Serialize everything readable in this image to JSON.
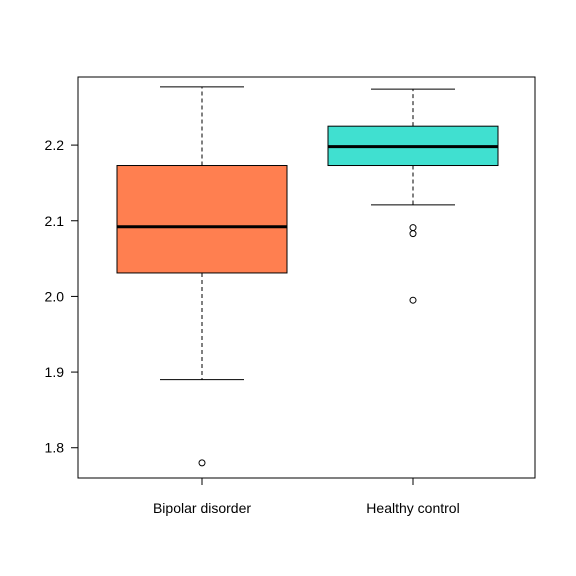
{
  "chart_data": {
    "type": "box",
    "title": "",
    "xlabel": "",
    "ylabel": "",
    "ylim": [
      1.76,
      2.29
    ],
    "yticks": [
      "1.8",
      "1.9",
      "2.0",
      "2.1",
      "2.2"
    ],
    "grid": false,
    "legend": "none",
    "categories": [
      "Bipolar disorder",
      "Healthy control"
    ],
    "boxes": [
      {
        "category": "Bipolar disorder",
        "color": "#FF7F50",
        "whisker_low": 1.89,
        "q1": 2.031,
        "median": 2.092,
        "q3": 2.173,
        "whisker_high": 2.277,
        "outliers": [
          1.78
        ]
      },
      {
        "category": "Healthy control",
        "color": "#40E0D0",
        "whisker_low": 2.121,
        "q1": 2.173,
        "median": 2.198,
        "q3": 2.225,
        "whisker_high": 2.274,
        "outliers": [
          2.091,
          2.083,
          1.995
        ]
      }
    ]
  }
}
